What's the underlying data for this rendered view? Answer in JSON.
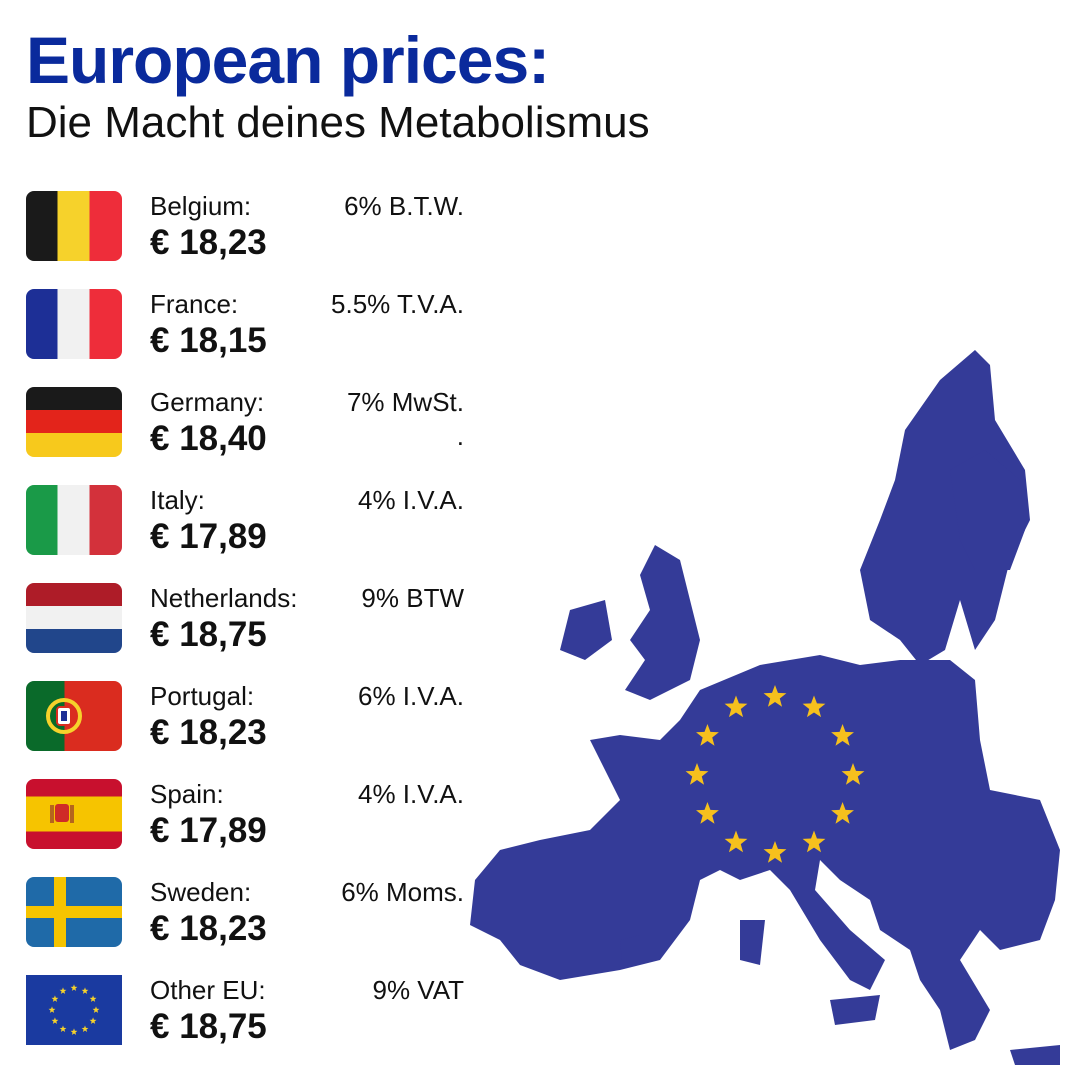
{
  "header": {
    "title": "European prices:",
    "subtitle": "Die Macht deines Metabolismus"
  },
  "rows": [
    {
      "country": "Belgium:",
      "price": "€ 18,23",
      "tax": "6% B.T.W."
    },
    {
      "country": "France:",
      "price": "€ 18,15",
      "tax": "5.5% T.V.A."
    },
    {
      "country": "Germany:",
      "price": "€ 18,40",
      "tax": "7% MwSt.",
      "extra": "."
    },
    {
      "country": "Italy:",
      "price": "€ 17,89",
      "tax": "4% I.V.A."
    },
    {
      "country": "Netherlands:",
      "price": "€ 18,75",
      "tax": "9% BTW"
    },
    {
      "country": "Portugal:",
      "price": "€ 18,23",
      "tax": "6% I.V.A."
    },
    {
      "country": "Spain:",
      "price": "€ 17,89",
      "tax": "4% I.V.A."
    },
    {
      "country": "Sweden:",
      "price": "€ 18,23",
      "tax": "6% Moms."
    },
    {
      "country": "Other EU:",
      "price": "€ 18,75",
      "tax": "9% VAT"
    }
  ]
}
